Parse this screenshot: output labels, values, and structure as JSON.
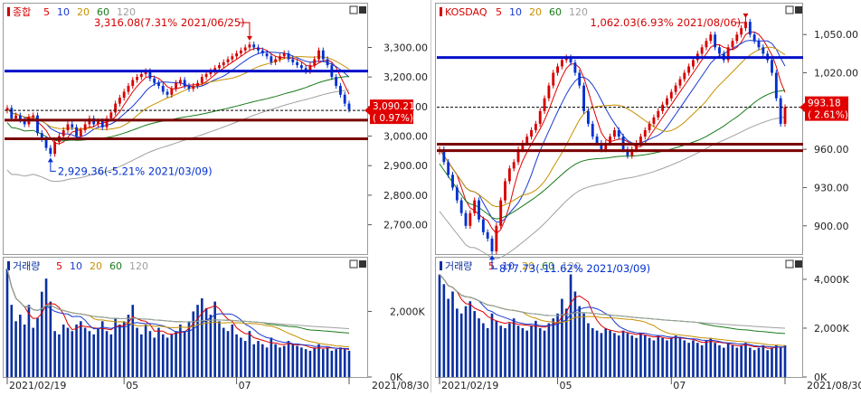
{
  "colors": {
    "up": "#d60000",
    "down": "#0030d0",
    "ma5": "#e00000",
    "ma10": "#1a3ad0",
    "ma20": "#c89000",
    "ma60": "#1a7a1a",
    "ma120": "#a0a0a0",
    "hline_blue": "#0010c8",
    "hline_maroon": "#7a0000",
    "frame": "#9a9a9a",
    "volume": "#0a30a0"
  },
  "legend_items": [
    {
      "label": "5",
      "color": "#e00000"
    },
    {
      "label": "10",
      "color": "#1a3ad0"
    },
    {
      "label": "20",
      "color": "#c89000"
    },
    {
      "label": "60",
      "color": "#1a7a1a"
    },
    {
      "label": "120",
      "color": "#a0a0a0"
    }
  ],
  "volume_title": "거래량",
  "chart_data": [
    {
      "type": "candlestick",
      "title": "종합",
      "y_ticks": [
        "3,300.00",
        "3,200.00",
        "3,100.00",
        "3,000.00",
        "2,900.00",
        "2,800.00",
        "2,700.00"
      ],
      "y_tick_values": [
        3300,
        3200,
        3100,
        3000,
        2900,
        2800,
        2700
      ],
      "ylim": [
        2610,
        3430
      ],
      "high_annotation": "3,316.08(7.31% 2021/06/25)",
      "low_annotation": "2,929.36(-5.21% 2021/03/09)",
      "current_price": "3,090.21",
      "current_change": "( 0.97%)",
      "blue_line": 3220,
      "maroon_lines": [
        3054,
        2991
      ],
      "dashed_line": 3087,
      "series": [
        {
          "name": "close",
          "values": [
            3095,
            3060,
            3070,
            3055,
            3040,
            3065,
            3070,
            3010,
            2990,
            2960,
            2940,
            2980,
            3000,
            3020,
            3040,
            3030,
            3000,
            3020,
            3040,
            3060,
            3040,
            3050,
            3030,
            3060,
            3080,
            3110,
            3130,
            3150,
            3170,
            3190,
            3200,
            3210,
            3220,
            3195,
            3180,
            3170,
            3150,
            3140,
            3160,
            3180,
            3190,
            3170,
            3160,
            3170,
            3180,
            3200,
            3210,
            3220,
            3230,
            3240,
            3250,
            3260,
            3270,
            3280,
            3290,
            3300,
            3310,
            3300,
            3290,
            3280,
            3270,
            3250,
            3260,
            3270,
            3280,
            3260,
            3250,
            3240,
            3230,
            3220,
            3240,
            3260,
            3290,
            3260,
            3240,
            3200,
            3170,
            3140,
            3110,
            3090
          ]
        }
      ],
      "volume": {
        "y_ticks": [
          "2,000K",
          "0K"
        ],
        "y_tick_values": [
          2000,
          0
        ],
        "ymax": 3500,
        "values": [
          3300,
          2200,
          1700,
          1900,
          1600,
          2200,
          1500,
          1800,
          2600,
          3000,
          2300,
          1400,
          1300,
          1600,
          1500,
          1400,
          1600,
          1700,
          1500,
          1400,
          1300,
          1500,
          1700,
          1400,
          1300,
          1800,
          1600,
          1700,
          1900,
          2200,
          1500,
          1300,
          1600,
          1400,
          1200,
          1500,
          1300,
          1200,
          1300,
          1400,
          1600,
          1400,
          1700,
          2000,
          2200,
          2400,
          2100,
          1900,
          2300,
          1700,
          1500,
          1400,
          1600,
          1300,
          1200,
          1100,
          1400,
          1000,
          1100,
          1000,
          900,
          1200,
          1000,
          900,
          950,
          1100,
          1000,
          950,
          900,
          850,
          800,
          900,
          1000,
          850,
          900,
          800,
          850,
          900,
          850,
          800
        ]
      },
      "x_ticks": [
        "2021/02/19",
        "05",
        "07",
        "2021/08/30"
      ],
      "x_tick_index": [
        0,
        27,
        53,
        80
      ]
    },
    {
      "type": "candlestick",
      "title": "KOSDAQ",
      "y_ticks": [
        "1,050.00",
        "1,020.00",
        "990.00",
        "960.00",
        "930.00",
        "900.00"
      ],
      "y_tick_values": [
        1050,
        1020,
        990,
        960,
        930,
        900
      ],
      "ylim": [
        880,
        1070
      ],
      "high_annotation": "1,062.03(6.93% 2021/08/06)",
      "low_annotation": "877.73(-11.62% 2021/03/09)",
      "current_price": "993.18",
      "current_change": "( 2.61%)",
      "blue_line": 1032,
      "maroon_lines": [
        964,
        959
      ],
      "dashed_line": 993,
      "series": [
        {
          "name": "close",
          "values": [
            960,
            950,
            940,
            930,
            920,
            910,
            900,
            910,
            920,
            905,
            895,
            890,
            880,
            900,
            920,
            935,
            945,
            950,
            960,
            965,
            970,
            975,
            980,
            990,
            1000,
            1010,
            1020,
            1025,
            1030,
            1032,
            1028,
            1020,
            1010,
            990,
            980,
            970,
            965,
            960,
            965,
            970,
            975,
            970,
            960,
            955,
            960,
            965,
            970,
            975,
            980,
            985,
            990,
            995,
            1000,
            1005,
            1010,
            1015,
            1020,
            1025,
            1030,
            1035,
            1040,
            1045,
            1050,
            1040,
            1035,
            1030,
            1040,
            1045,
            1050,
            1055,
            1060,
            1050,
            1045,
            1040,
            1035,
            1030,
            1020,
            1000,
            980,
            993
          ]
        }
      ],
      "volume": {
        "y_ticks": [
          "4,000K",
          "2,000K",
          "0K"
        ],
        "y_tick_values": [
          4000,
          2000,
          0
        ],
        "ymax": 4700,
        "values": [
          4200,
          3800,
          3200,
          3500,
          2800,
          2600,
          2900,
          3100,
          2700,
          2400,
          2200,
          2000,
          2600,
          2300,
          2100,
          2000,
          2200,
          2400,
          2100,
          2000,
          1900,
          2100,
          2300,
          2000,
          1900,
          2200,
          2400,
          2600,
          3200,
          2800,
          4200,
          3500,
          2900,
          2600,
          2200,
          2000,
          1900,
          1800,
          2000,
          1900,
          1800,
          1700,
          1900,
          1800,
          1700,
          1600,
          1800,
          1700,
          1600,
          1500,
          1700,
          1600,
          1500,
          1600,
          1700,
          1600,
          1500,
          1400,
          1500,
          1400,
          1300,
          1500,
          1600,
          1400,
          1300,
          1200,
          1400,
          1300,
          1200,
          1300,
          1400,
          1200,
          1100,
          1200,
          1300,
          1100,
          1200,
          1300,
          1200,
          1300
        ]
      },
      "x_ticks": [
        "2021/02/19",
        "05",
        "07",
        "2021/08/30"
      ],
      "x_tick_index": [
        0,
        27,
        53,
        80
      ]
    }
  ]
}
